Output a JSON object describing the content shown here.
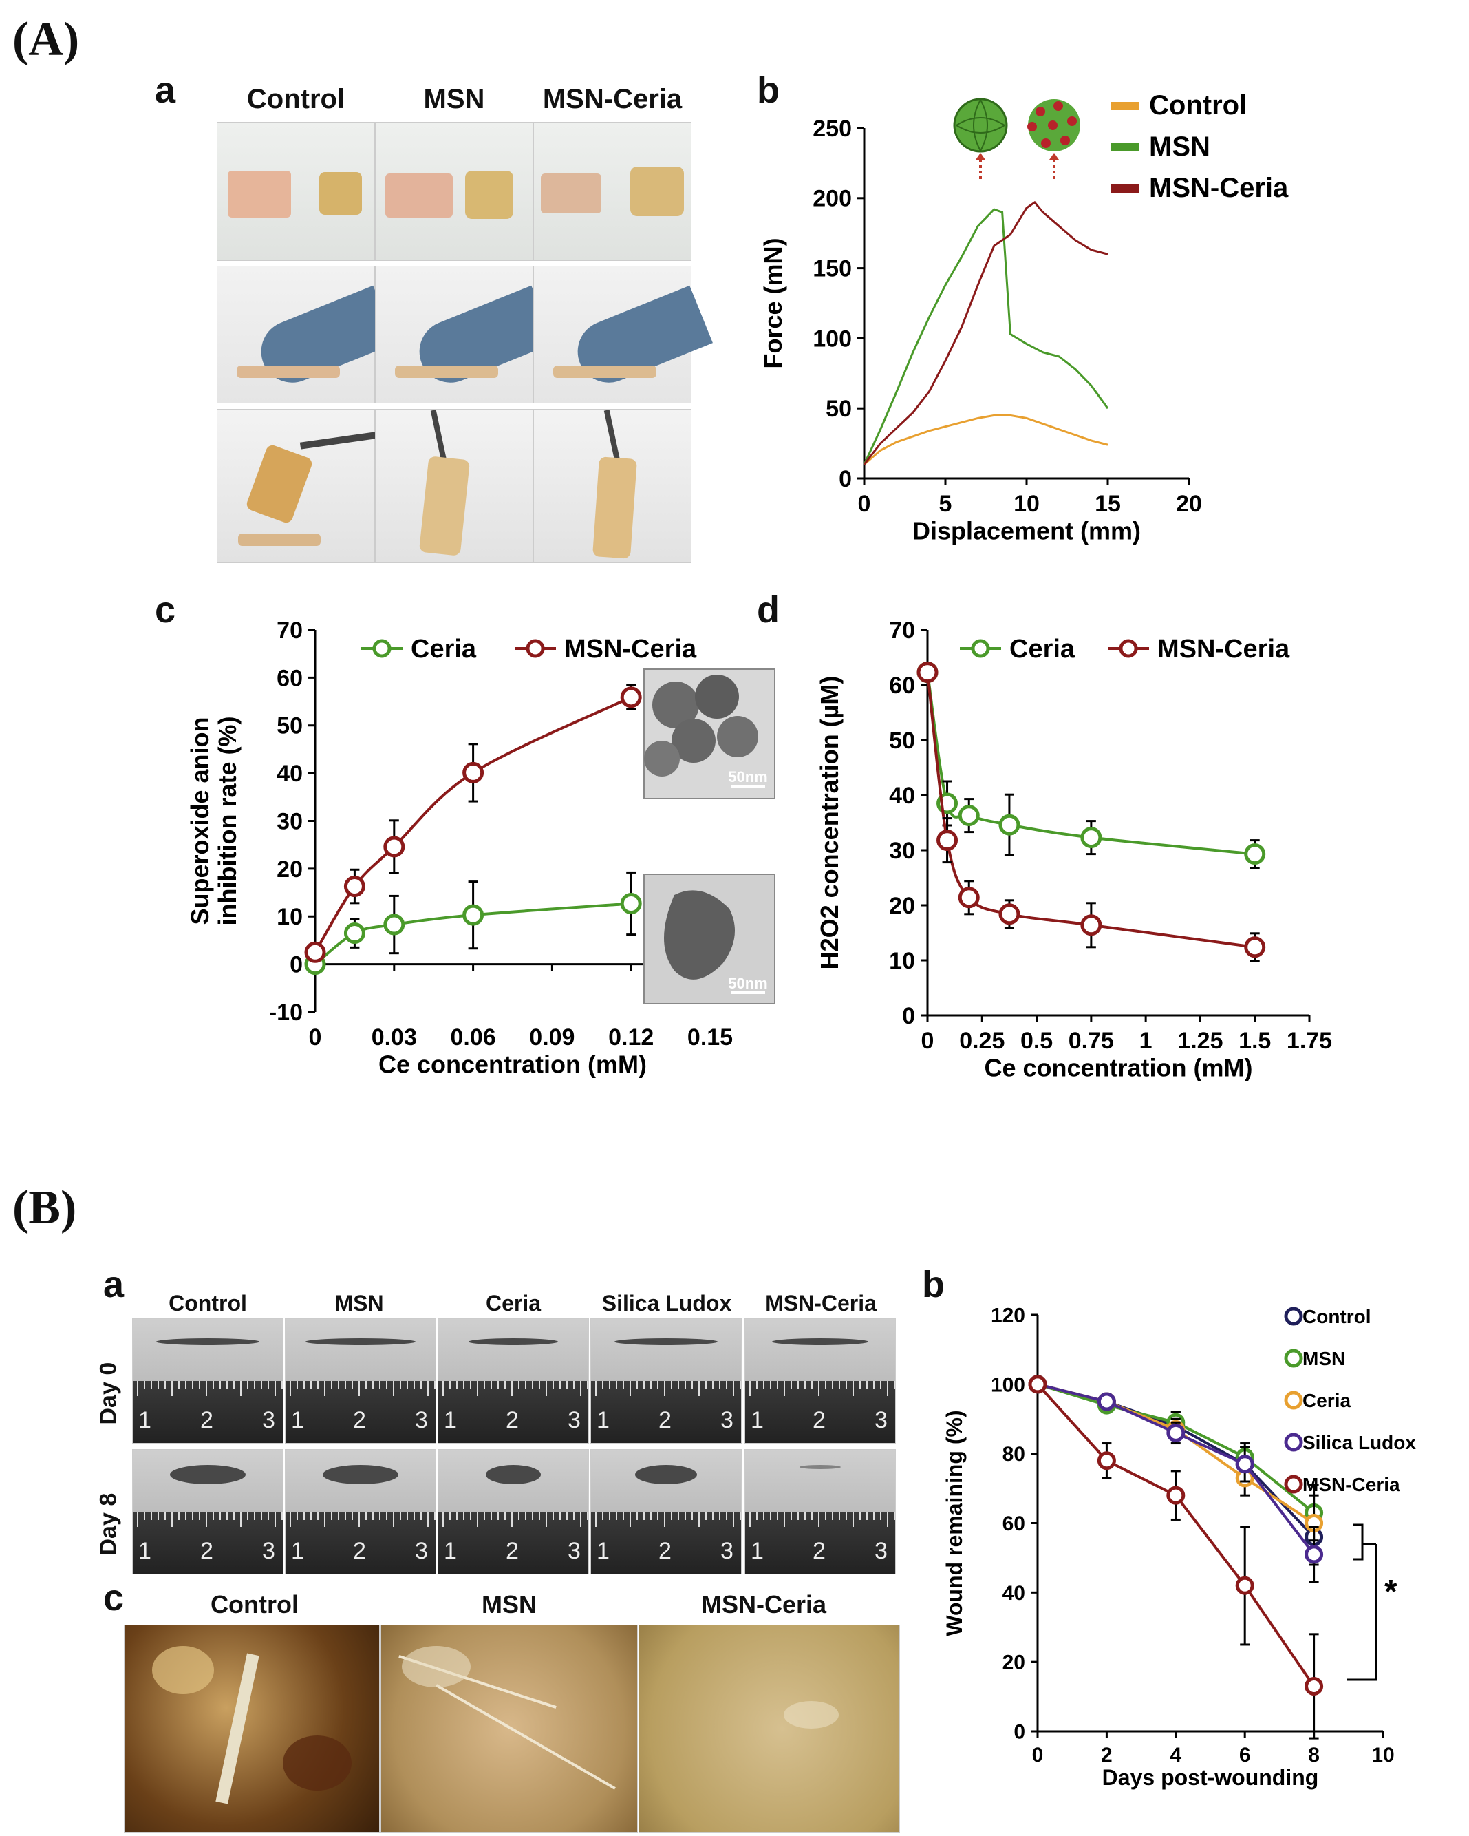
{
  "section_A": "(A)",
  "section_B": "(B)",
  "A": {
    "a": {
      "letter": "a",
      "columns": [
        "Control",
        "MSN",
        "MSN-Ceria"
      ]
    },
    "b_letter": "b",
    "c_letter": "c",
    "d_letter": "d",
    "c_tem_top_scale": "50nm",
    "c_tem_bottom_scale": "50nm"
  },
  "B": {
    "a": {
      "letter": "a",
      "columns": [
        "Control",
        "MSN",
        "Ceria",
        "Silica Ludox",
        "MSN-Ceria"
      ],
      "rows": [
        "Day 0",
        "Day 8"
      ],
      "ruler_numbers": [
        "1",
        "2",
        "3"
      ]
    },
    "b_letter": "b",
    "c": {
      "letter": "c",
      "columns": [
        "Control",
        "MSN",
        "MSN-Ceria"
      ]
    },
    "significance": "*"
  },
  "colors": {
    "control_orange": "#E8A030",
    "msn_green": "#4A9A2A",
    "msnceria_red": "#8B1A1A",
    "ceria_green": "#4A9A2A",
    "control_navy": "#1F1F5A",
    "ceria_orange": "#E8A030",
    "silica_purple": "#4B2A8F"
  },
  "chart_data": [
    {
      "id": "Ab",
      "type": "line",
      "xlabel": "Displacement (mm)",
      "ylabel": "Force (mN)",
      "xlim": [
        0,
        20
      ],
      "ylim": [
        0,
        250
      ],
      "xticks": [
        0,
        5,
        10,
        15,
        20
      ],
      "yticks": [
        0,
        50,
        100,
        150,
        200,
        250
      ],
      "legend": "top-right",
      "series": [
        {
          "name": "Control",
          "color": "#E8A030",
          "x": [
            0,
            1,
            2,
            3,
            4,
            5,
            6,
            7,
            8,
            9,
            10,
            11,
            12,
            13,
            14,
            15
          ],
          "y": [
            10,
            20,
            26,
            30,
            34,
            37,
            40,
            43,
            45,
            45,
            43,
            39,
            35,
            31,
            27,
            24
          ]
        },
        {
          "name": "MSN",
          "color": "#4A9A2A",
          "x": [
            0,
            1,
            2,
            3,
            4,
            5,
            6,
            7,
            8,
            8.5,
            9,
            10,
            11,
            12,
            13,
            14,
            15
          ],
          "y": [
            10,
            35,
            62,
            90,
            115,
            138,
            158,
            180,
            192,
            190,
            103,
            96,
            90,
            87,
            78,
            66,
            50
          ]
        },
        {
          "name": "MSN-Ceria",
          "color": "#8B1A1A",
          "x": [
            0,
            1,
            2,
            3,
            4,
            5,
            6,
            7,
            8,
            9,
            10,
            10.5,
            11,
            12,
            13,
            14,
            15
          ],
          "y": [
            10,
            25,
            36,
            47,
            62,
            84,
            108,
            138,
            166,
            174,
            193,
            197,
            190,
            180,
            170,
            163,
            160
          ]
        }
      ]
    },
    {
      "id": "Ac",
      "type": "line",
      "xlabel": "Ce concentration (mM)",
      "ylabel": [
        "Superoxide anion",
        "inhibition rate (%)"
      ],
      "xlim": [
        0,
        0.15
      ],
      "ylim": [
        -10,
        70
      ],
      "xticks": [
        "0",
        "0.03",
        "0.06",
        "0.09",
        "0.12",
        "0.15"
      ],
      "yticks": [
        -10,
        0,
        10,
        20,
        30,
        40,
        50,
        60,
        70
      ],
      "legend": "top",
      "series": [
        {
          "name": "Ceria",
          "color": "#4A9A2A",
          "x": [
            0,
            0.015,
            0.03,
            0.06,
            0.12
          ],
          "y": [
            0,
            6.5,
            8.3,
            10.3,
            12.7
          ],
          "err": [
            1.5,
            3,
            6,
            7,
            6.5
          ]
        },
        {
          "name": "MSN-Ceria",
          "color": "#8B1A1A",
          "x": [
            0,
            0.015,
            0.03,
            0.06,
            0.12
          ],
          "y": [
            2.5,
            16.3,
            24.6,
            40.1,
            55.9
          ],
          "err": [
            1.5,
            3.5,
            5.5,
            6,
            2.5
          ]
        }
      ]
    },
    {
      "id": "Ad",
      "type": "line",
      "xlabel": "Ce concentration (mM)",
      "ylabel": "H2O2 concentration (µM)",
      "xlim": [
        0,
        1.75
      ],
      "ylim": [
        0,
        70
      ],
      "xticks": [
        "0",
        "0.25",
        "0.5",
        "0.75",
        "1",
        "1.25",
        "1.5",
        "1.75"
      ],
      "yticks": [
        0,
        10,
        20,
        30,
        40,
        50,
        60,
        70
      ],
      "legend": "top",
      "series": [
        {
          "name": "Ceria",
          "color": "#4A9A2A",
          "x": [
            0,
            0.09,
            0.19,
            0.375,
            0.75,
            1.5
          ],
          "y": [
            62.3,
            38.5,
            36.3,
            34.6,
            32.3,
            29.3
          ],
          "err": [
            1,
            4,
            3,
            5.5,
            3,
            2.5
          ]
        },
        {
          "name": "MSN-Ceria",
          "color": "#8B1A1A",
          "x": [
            0,
            0.09,
            0.19,
            0.375,
            0.75,
            1.5
          ],
          "y": [
            62.3,
            31.8,
            21.4,
            18.4,
            16.4,
            12.4
          ],
          "err": [
            1,
            4,
            3,
            2.5,
            4,
            2.5
          ]
        }
      ]
    },
    {
      "id": "Bb",
      "type": "line",
      "xlabel": "Days post-wounding",
      "ylabel": "Wound remaining (%)",
      "xlim": [
        0,
        10
      ],
      "ylim": [
        0,
        120
      ],
      "xticks": [
        0,
        2,
        4,
        6,
        8,
        10
      ],
      "yticks": [
        0,
        20,
        40,
        60,
        80,
        100,
        120
      ],
      "legend": "right",
      "series": [
        {
          "name": "Control",
          "color": "#1F1F5A",
          "x": [
            0,
            2,
            4,
            6,
            8
          ],
          "y": [
            100,
            95,
            88,
            77,
            56
          ],
          "err": [
            0,
            2,
            4,
            5,
            8
          ]
        },
        {
          "name": "MSN",
          "color": "#4A9A2A",
          "x": [
            0,
            2,
            4,
            6,
            8
          ],
          "y": [
            100,
            94,
            89,
            79,
            63
          ],
          "err": [
            0,
            2,
            3,
            4,
            8
          ]
        },
        {
          "name": "Ceria",
          "color": "#E8A030",
          "x": [
            0,
            2,
            4,
            6,
            8
          ],
          "y": [
            100,
            95,
            87,
            73,
            60
          ],
          "err": [
            0,
            2,
            3,
            5,
            8
          ]
        },
        {
          "name": "Silica Ludox",
          "color": "#4B2A8F",
          "x": [
            0,
            2,
            4,
            6,
            8
          ],
          "y": [
            100,
            95,
            86,
            77,
            51
          ],
          "err": [
            0,
            2,
            3,
            5,
            8
          ]
        },
        {
          "name": "MSN-Ceria",
          "color": "#8B1A1A",
          "x": [
            0,
            2,
            4,
            6,
            8
          ],
          "y": [
            100,
            78,
            68,
            42,
            13
          ],
          "err": [
            0,
            5,
            7,
            17,
            15
          ]
        }
      ]
    }
  ]
}
